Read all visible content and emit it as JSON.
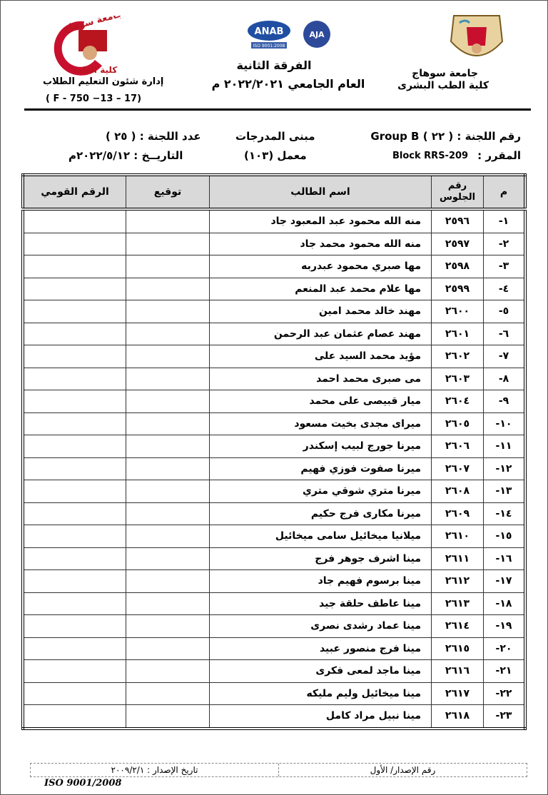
{
  "header": {
    "university": "جامعة سوهاج",
    "faculty": "كلية الطب البشرى",
    "level": "الفرقة الثانية",
    "academic_year": "العام الجامعي ٢٠٢٢/٢٠٢١ م",
    "department": "إدارة شئون التعليم الطلاب",
    "form_code": "( F - 750 −13 – 17)",
    "logo_left_text": "جامعة سوهاج كلية الطب",
    "anab_text": "ANAB",
    "anab_sub": "ISO 9001:2008",
    "aja_text": "AJA"
  },
  "info": {
    "committee_number": "رقم اللجنة : ( ٢٢ ) Group B",
    "building": "مبنى المدرجات",
    "committee_count": "عدد اللجنة : ( ٢٥ )",
    "course": "المقرر :",
    "course_code": "Block RRS-209",
    "lab": "معمل (١٠٣)",
    "date": "التاريــخ : ٢٠٢٢/٥/١٢م"
  },
  "table": {
    "headers": [
      "م",
      "رقم الجلوس",
      "اسم الطالب",
      "توقيع",
      "الرقم القومي"
    ],
    "rows": [
      [
        "١-",
        "٢٥٩٦",
        "منه الله محمود عبد المعبود جاد"
      ],
      [
        "٢-",
        "٢٥٩٧",
        "منه الله محمود محمد جاد"
      ],
      [
        "٣-",
        "٢٥٩٨",
        "مها صبري محمود عبدربه"
      ],
      [
        "٤-",
        "٢٥٩٩",
        "مها علام محمد عبد المنعم"
      ],
      [
        "٥-",
        "٢٦٠٠",
        "مهند خالد محمد امين"
      ],
      [
        "٦-",
        "٢٦٠١",
        "مهند عصام عثمان عبد الرحمن"
      ],
      [
        "٧-",
        "٢٦٠٢",
        "مؤيد محمد السيد على"
      ],
      [
        "٨-",
        "٢٦٠٣",
        "مى صبرى محمد احمد"
      ],
      [
        "٩-",
        "٢٦٠٤",
        "ميار قبيصى على محمد"
      ],
      [
        "١٠-",
        "٢٦٠٥",
        "ميراى مجدى بخيت مسعود"
      ],
      [
        "١١-",
        "٢٦٠٦",
        "ميرنا جورج لبيب إسكندر"
      ],
      [
        "١٢-",
        "٢٦٠٧",
        "ميرنا صفوت فوزي فهيم"
      ],
      [
        "١٣-",
        "٢٦٠٨",
        "ميرنا متري شوقي متري"
      ],
      [
        "١٤-",
        "٢٦٠٩",
        "ميرنا مكارى فرج حكيم"
      ],
      [
        "١٥-",
        "٢٦١٠",
        "ميلانيا ميخائيل سامى ميخائيل"
      ],
      [
        "١٦-",
        "٢٦١١",
        "مينا اشرف جوهر فرج"
      ],
      [
        "١٧-",
        "٢٦١٢",
        "مينا برسوم فهيم جاد"
      ],
      [
        "١٨-",
        "٢٦١٣",
        "مينا عاطف حلقة جيد"
      ],
      [
        "١٩-",
        "٢٦١٤",
        "مينا عماد رشدى نصرى"
      ],
      [
        "٢٠-",
        "٢٦١٥",
        "مينا فرج منصور عبيد"
      ],
      [
        "٢١-",
        "٢٦١٦",
        "مينا ماجد لمعى فكرى"
      ],
      [
        "٢٢-",
        "٢٦١٧",
        "مينا ميخائيل وليم مليكه"
      ],
      [
        "٢٣-",
        "٢٦١٨",
        "مينا نبيل مراد كامل"
      ]
    ]
  },
  "footer": {
    "issue_number": "رقم الإصدار/ الأول",
    "issue_date": "تاريخ الإصدار : ٢٠٠٩/٢/١",
    "iso": "ISO 9001/2008"
  }
}
